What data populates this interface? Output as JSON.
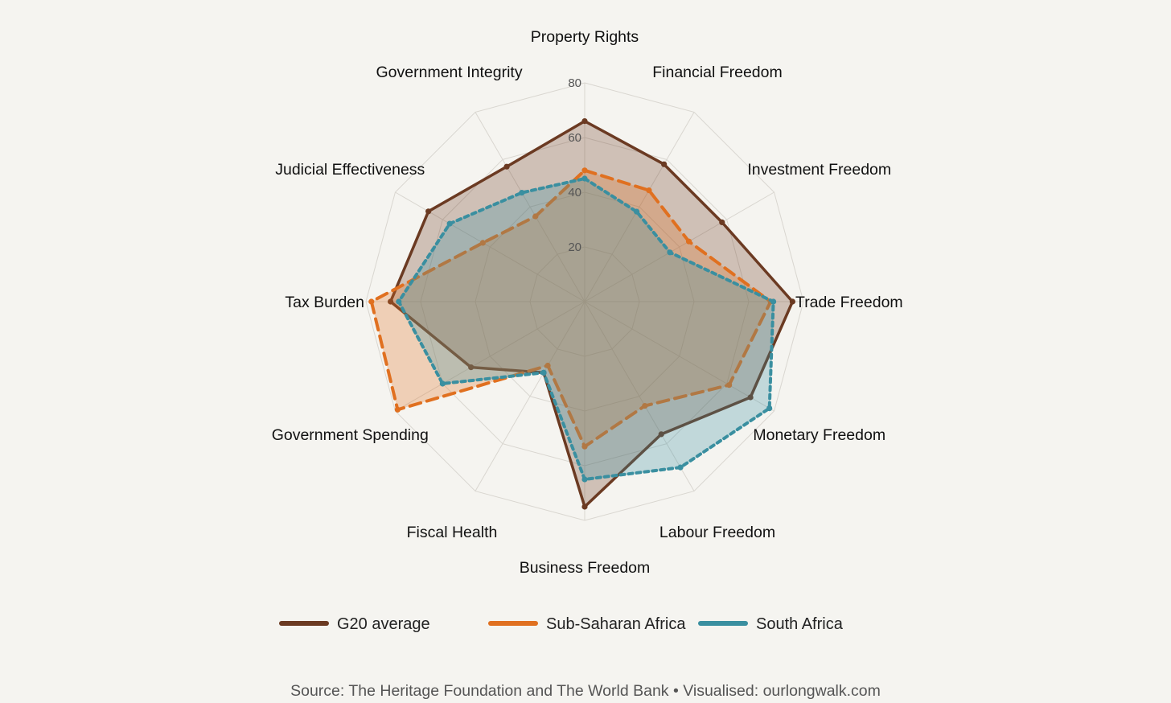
{
  "chart_data": {
    "type": "radar",
    "title": "",
    "categories": [
      "Property Rights",
      "Financial Freedom",
      "Investment Freedom",
      "Trade Freedom",
      "Monetary Freedom",
      "Labour Freedom",
      "Business Freedom",
      "Fiscal Health",
      "Government Spending",
      "Tax Burden",
      "Judicial Effectiveness",
      "Government Integrity"
    ],
    "r_ticks": [
      20,
      40,
      60,
      80
    ],
    "r_range": [
      0,
      80
    ],
    "grid": true,
    "series": [
      {
        "name": "G20 average",
        "color": "#6b3a22",
        "line_style": "solid",
        "values": [
          66,
          58,
          58,
          76,
          70,
          56,
          75,
          30,
          48,
          71,
          66,
          57
        ]
      },
      {
        "name": "Sub-Saharan Africa",
        "color": "#e07020",
        "line_style": "dashed",
        "values": [
          48,
          47,
          44,
          68,
          61,
          44,
          53,
          27,
          79,
          78,
          43,
          36
        ]
      },
      {
        "name": "South Africa",
        "color": "#3a8fa0",
        "line_style": "dotted",
        "values": [
          45,
          38,
          36,
          69,
          78,
          70,
          65,
          30,
          60,
          68,
          57,
          46
        ]
      }
    ],
    "legend_position": "bottom"
  },
  "caption": "Source: The Heritage Foundation and The World Bank • Visualised: ourlongwalk.com"
}
